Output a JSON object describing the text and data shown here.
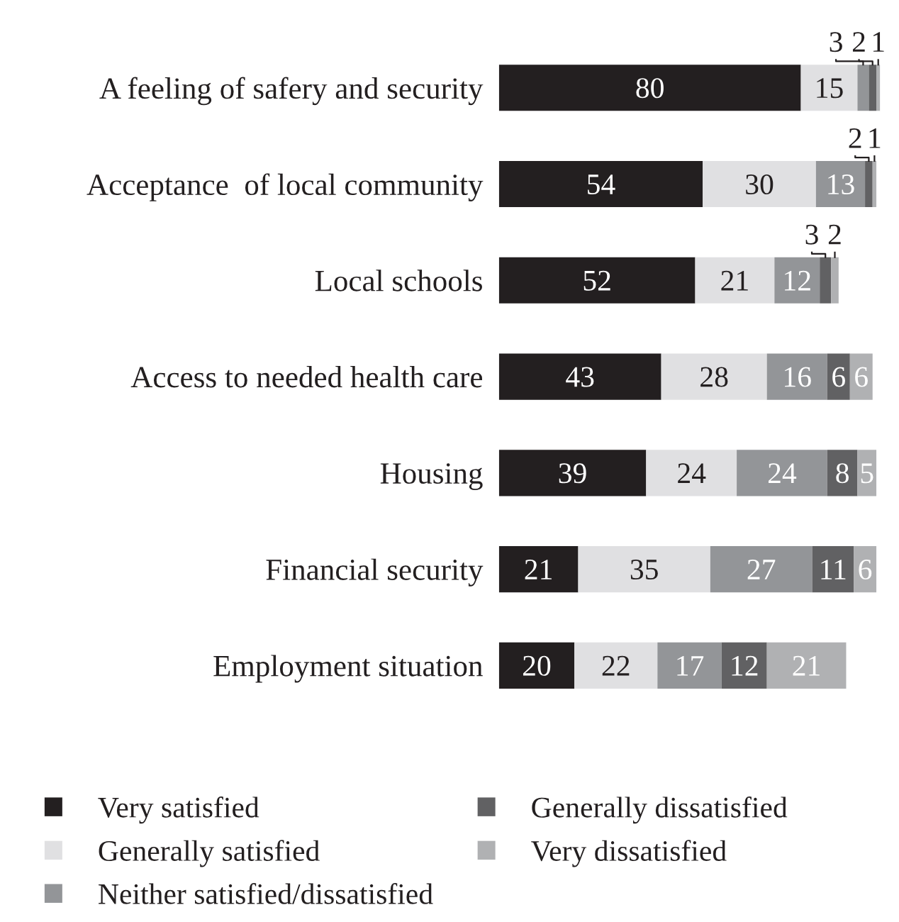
{
  "chart_data": {
    "type": "bar",
    "orientation": "horizontal",
    "stacked": true,
    "data_labels": true,
    "legend": "bottom",
    "grid": false,
    "categories": [
      "A feeling of safery and security",
      "Acceptance  of local community",
      "Local schools",
      "Access to needed health care",
      "Housing",
      "Financial security",
      "Employment situation"
    ],
    "series": [
      {
        "name": "Very satisfied",
        "color": "#231f20",
        "values": [
          80,
          54,
          52,
          43,
          39,
          21,
          20
        ]
      },
      {
        "name": "Generally satisfied",
        "color": "#e0e0e2",
        "values": [
          15,
          30,
          21,
          28,
          24,
          35,
          22
        ]
      },
      {
        "name": "Neither satisfied/dissatisfied",
        "color": "#939598",
        "values": [
          3,
          13,
          12,
          16,
          24,
          27,
          17
        ]
      },
      {
        "name": "Generally dissatisfied",
        "color": "#616163",
        "values": [
          2,
          2,
          3,
          6,
          8,
          11,
          12
        ]
      },
      {
        "name": "Very dissatisfied",
        "color": "#b0b1b3",
        "values": [
          1,
          1,
          2,
          6,
          5,
          6,
          21
        ]
      }
    ]
  }
}
